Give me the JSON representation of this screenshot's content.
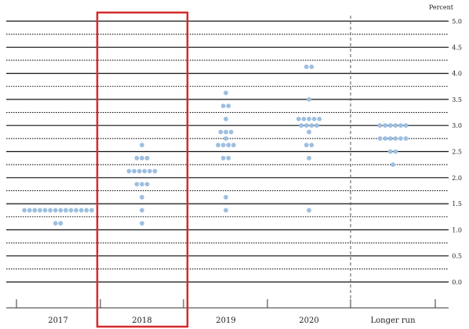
{
  "chart_data": {
    "type": "scatter",
    "unit_label": "Percent",
    "categories": [
      "2017",
      "2018",
      "2019",
      "2020",
      "Longer run"
    ],
    "ylim": [
      0,
      5
    ],
    "yticks": [
      "0.0",
      "0.5",
      "1.0",
      "1.5",
      "2.0",
      "2.5",
      "3.0",
      "3.5",
      "4.0",
      "4.5",
      "5.0"
    ],
    "grid": true,
    "highlight_category": "2018",
    "highlight_color": "#d42a2a",
    "dot_color": "#9dbfe0",
    "dots": [
      {
        "category": "2017",
        "y": 1.375,
        "count": 14
      },
      {
        "category": "2017",
        "y": 1.125,
        "count": 2
      },
      {
        "category": "2018",
        "y": 2.625,
        "count": 1
      },
      {
        "category": "2018",
        "y": 2.375,
        "count": 3
      },
      {
        "category": "2018",
        "y": 2.125,
        "count": 6
      },
      {
        "category": "2018",
        "y": 1.875,
        "count": 3
      },
      {
        "category": "2018",
        "y": 1.625,
        "count": 1
      },
      {
        "category": "2018",
        "y": 1.375,
        "count": 1
      },
      {
        "category": "2018",
        "y": 1.125,
        "count": 1
      },
      {
        "category": "2019",
        "y": 3.625,
        "count": 1
      },
      {
        "category": "2019",
        "y": 3.375,
        "count": 2
      },
      {
        "category": "2019",
        "y": 3.125,
        "count": 1
      },
      {
        "category": "2019",
        "y": 2.875,
        "count": 3
      },
      {
        "category": "2019",
        "y": 2.75,
        "count": 1
      },
      {
        "category": "2019",
        "y": 2.625,
        "count": 4
      },
      {
        "category": "2019",
        "y": 2.375,
        "count": 2
      },
      {
        "category": "2019",
        "y": 1.625,
        "count": 1
      },
      {
        "category": "2019",
        "y": 1.375,
        "count": 1
      },
      {
        "category": "2020",
        "y": 4.125,
        "count": 2
      },
      {
        "category": "2020",
        "y": 3.5,
        "count": 1
      },
      {
        "category": "2020",
        "y": 3.125,
        "count": 5
      },
      {
        "category": "2020",
        "y": 3.0,
        "count": 4
      },
      {
        "category": "2020",
        "y": 2.875,
        "count": 1
      },
      {
        "category": "2020",
        "y": 2.625,
        "count": 2
      },
      {
        "category": "2020",
        "y": 2.375,
        "count": 1
      },
      {
        "category": "2020",
        "y": 1.375,
        "count": 1
      },
      {
        "category": "Longer run",
        "y": 3.0,
        "count": 6
      },
      {
        "category": "Longer run",
        "y": 2.75,
        "count": 6
      },
      {
        "category": "Longer run",
        "y": 2.5,
        "count": 2
      },
      {
        "category": "Longer run",
        "y": 2.25,
        "count": 1
      }
    ]
  }
}
